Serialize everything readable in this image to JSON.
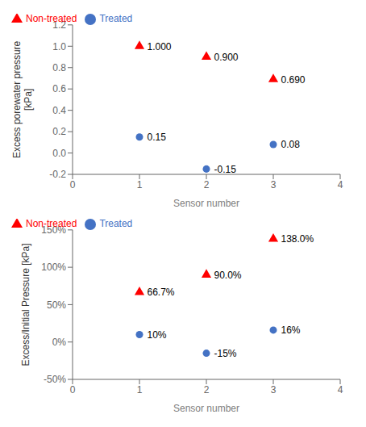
{
  "chart_data": [
    {
      "type": "scatter",
      "xlabel": "Sensor number",
      "ylabel": "Excess porewater pressure\n[kPa]",
      "xlim": [
        0,
        4
      ],
      "ylim": [
        -0.2,
        1.2
      ],
      "xticks": [
        0,
        1,
        2,
        3,
        4
      ],
      "yticks": [
        -0.2,
        {
          "value": 0,
          "label": "0.0"
        },
        0.2,
        0.4,
        0.6,
        0.8,
        {
          "value": 1,
          "label": "1.0"
        },
        1.2
      ],
      "legend": "upper left",
      "data_labels": true,
      "series": [
        {
          "name": "Treated",
          "color": "#4472C4",
          "marker": "circle",
          "x": [
            1,
            2,
            3
          ],
          "values": [
            0.15,
            -0.15,
            0.08
          ]
        },
        {
          "name": "Non-treated",
          "color": "#FF0000",
          "marker": "triangle",
          "x": [
            1,
            2,
            3
          ],
          "values": [
            1.0,
            0.9,
            0.69
          ],
          "value_labels": [
            "1.000",
            "0.900",
            "0.690"
          ]
        }
      ]
    },
    {
      "type": "scatter",
      "xlabel": "Sensor number",
      "ylabel": "Excess/Initial Pressure [kPa]",
      "xlim": [
        0,
        4
      ],
      "ylim": [
        -50,
        150
      ],
      "xticks": [
        0,
        1,
        2,
        3,
        4
      ],
      "yticks": [
        {
          "value": -50,
          "label": "-50%"
        },
        {
          "value": 0,
          "label": "0%"
        },
        {
          "value": 50,
          "label": "50%"
        },
        {
          "value": 100,
          "label": "100%"
        },
        {
          "value": 150,
          "label": "150%"
        }
      ],
      "legend": "upper left",
      "data_labels": true,
      "series": [
        {
          "name": "Treated",
          "color": "#4472C4",
          "marker": "circle",
          "x": [
            1,
            2,
            3
          ],
          "values": [
            10,
            -15,
            16
          ],
          "value_labels": [
            "10%",
            "-15%",
            "16%"
          ]
        },
        {
          "name": "Non-treated",
          "color": "#FF0000",
          "marker": "triangle",
          "x": [
            1,
            2,
            3
          ],
          "values": [
            66.7,
            90.0,
            138.0
          ],
          "value_labels": [
            "66.7%",
            "90.0%",
            "138.0%"
          ]
        }
      ]
    }
  ]
}
